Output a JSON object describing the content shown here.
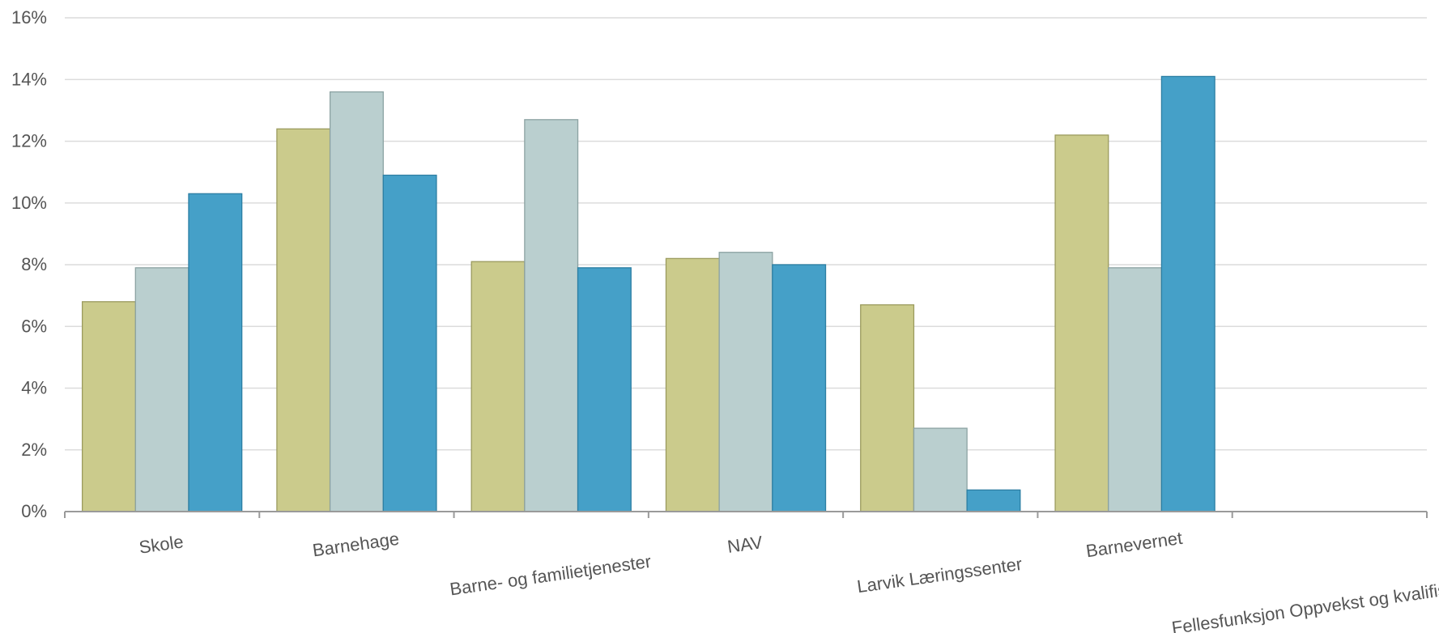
{
  "chart_data": {
    "type": "bar",
    "title": "",
    "xlabel": "",
    "ylabel": "",
    "ylim": [
      0,
      16
    ],
    "y_ticks": [
      0,
      2,
      4,
      6,
      8,
      10,
      12,
      14,
      16
    ],
    "y_tick_labels": [
      "0%",
      "2%",
      "4%",
      "6%",
      "8%",
      "10%",
      "12%",
      "14%",
      "16%"
    ],
    "grid": true,
    "categories": [
      "Skole",
      "Barnehage",
      "Barne- og familietjenester",
      "NAV",
      "Larvik Læringssenter",
      "Barnevernet",
      "Fellesfunksjon Oppvekst og kvalifisering"
    ],
    "series": [
      {
        "color": "#cbcb8c",
        "stroke": "#9b9b5e",
        "values": [
          6.8,
          12.4,
          8.1,
          8.2,
          6.7,
          12.2,
          0
        ]
      },
      {
        "color": "#bacfcf",
        "stroke": "#8ba2a2",
        "values": [
          7.9,
          13.6,
          12.7,
          8.4,
          2.7,
          7.9,
          0
        ]
      },
      {
        "color": "#45a0c8",
        "stroke": "#2b7ea3",
        "values": [
          10.3,
          10.9,
          7.9,
          8.0,
          0.7,
          14.1,
          0
        ]
      }
    ]
  }
}
